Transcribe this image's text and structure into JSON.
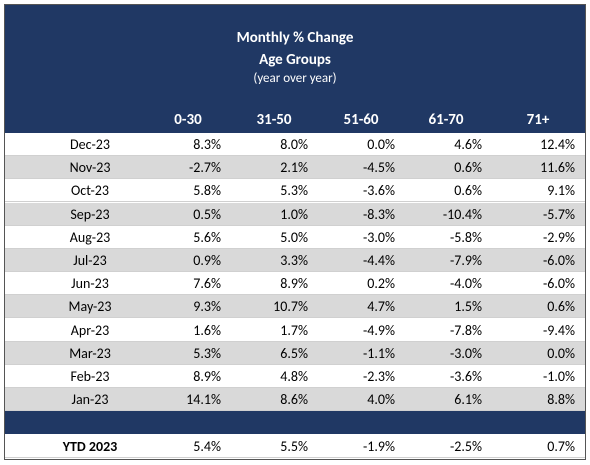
{
  "header": {
    "title": "Monthly % Change",
    "subtitle": "Age Groups",
    "note": "(year over year)"
  },
  "table": {
    "columns": [
      "0-30",
      "31-50",
      "51-60",
      "61-70",
      "71+"
    ],
    "rows": [
      {
        "label": "Dec-23",
        "values": [
          "8.3%",
          "8.0%",
          "0.0%",
          "4.6%",
          "12.4%"
        ]
      },
      {
        "label": "Nov-23",
        "values": [
          "-2.7%",
          "2.1%",
          "-4.5%",
          "0.6%",
          "11.6%"
        ]
      },
      {
        "label": "Oct-23",
        "values": [
          "5.8%",
          "5.3%",
          "-3.6%",
          "0.6%",
          "9.1%"
        ]
      },
      {
        "label": "Sep-23",
        "values": [
          "0.5%",
          "1.0%",
          "-8.3%",
          "-10.4%",
          "-5.7%"
        ]
      },
      {
        "label": "Aug-23",
        "values": [
          "5.6%",
          "5.0%",
          "-3.0%",
          "-5.8%",
          "-2.9%"
        ]
      },
      {
        "label": "Jul-23",
        "values": [
          "0.9%",
          "3.3%",
          "-4.4%",
          "-7.9%",
          "-6.0%"
        ]
      },
      {
        "label": "Jun-23",
        "values": [
          "7.6%",
          "8.9%",
          "0.2%",
          "-4.0%",
          "-6.0%"
        ]
      },
      {
        "label": "May-23",
        "values": [
          "9.3%",
          "10.7%",
          "4.7%",
          "1.5%",
          "0.6%"
        ]
      },
      {
        "label": "Apr-23",
        "values": [
          "1.6%",
          "1.7%",
          "-4.9%",
          "-7.8%",
          "-9.4%"
        ]
      },
      {
        "label": "Mar-23",
        "values": [
          "5.3%",
          "6.5%",
          "-1.1%",
          "-3.0%",
          "0.0%"
        ]
      },
      {
        "label": "Feb-23",
        "values": [
          "8.9%",
          "4.8%",
          "-2.3%",
          "-3.6%",
          "-1.0%"
        ]
      },
      {
        "label": "Jan-23",
        "values": [
          "14.1%",
          "8.6%",
          "4.0%",
          "6.1%",
          "8.8%"
        ]
      }
    ],
    "total": {
      "label": "YTD 2023",
      "values": [
        "5.4%",
        "5.5%",
        "-1.9%",
        "-2.5%",
        "0.7%"
      ]
    }
  }
}
